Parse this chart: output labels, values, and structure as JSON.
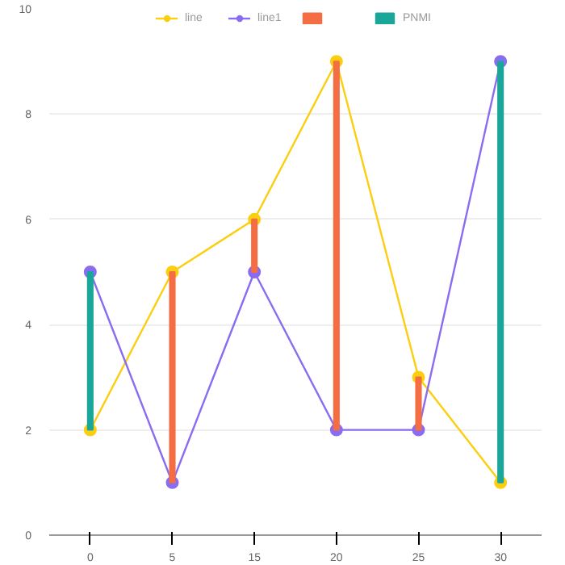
{
  "chart_data": {
    "type": "line",
    "categories": [
      "0",
      "5",
      "15",
      "20",
      "25",
      "30"
    ],
    "series": [
      {
        "name": "line",
        "color": "#fcce10",
        "values": [
          2,
          5,
          6,
          9,
          3,
          1
        ],
        "marker": "circle"
      },
      {
        "name": "line1",
        "color": "#8a6cf0",
        "values": [
          5,
          1,
          5,
          2,
          2,
          9
        ],
        "marker": "circle"
      },
      {
        "type": "bar",
        "color": "#f46d43",
        "base": [
          null,
          1,
          5,
          2,
          2,
          null
        ],
        "values": [
          null,
          4,
          1,
          7,
          1,
          null
        ]
      },
      {
        "name": "PNMI",
        "type": "bar",
        "color": "#1aa79a",
        "base": [
          2,
          null,
          null,
          null,
          null,
          1
        ],
        "values": [
          3,
          null,
          null,
          null,
          null,
          8
        ]
      }
    ],
    "ylim": [
      0,
      10
    ],
    "yticks": [
      0,
      2,
      4,
      6,
      8,
      10
    ],
    "grid": "y",
    "legend": "top"
  }
}
